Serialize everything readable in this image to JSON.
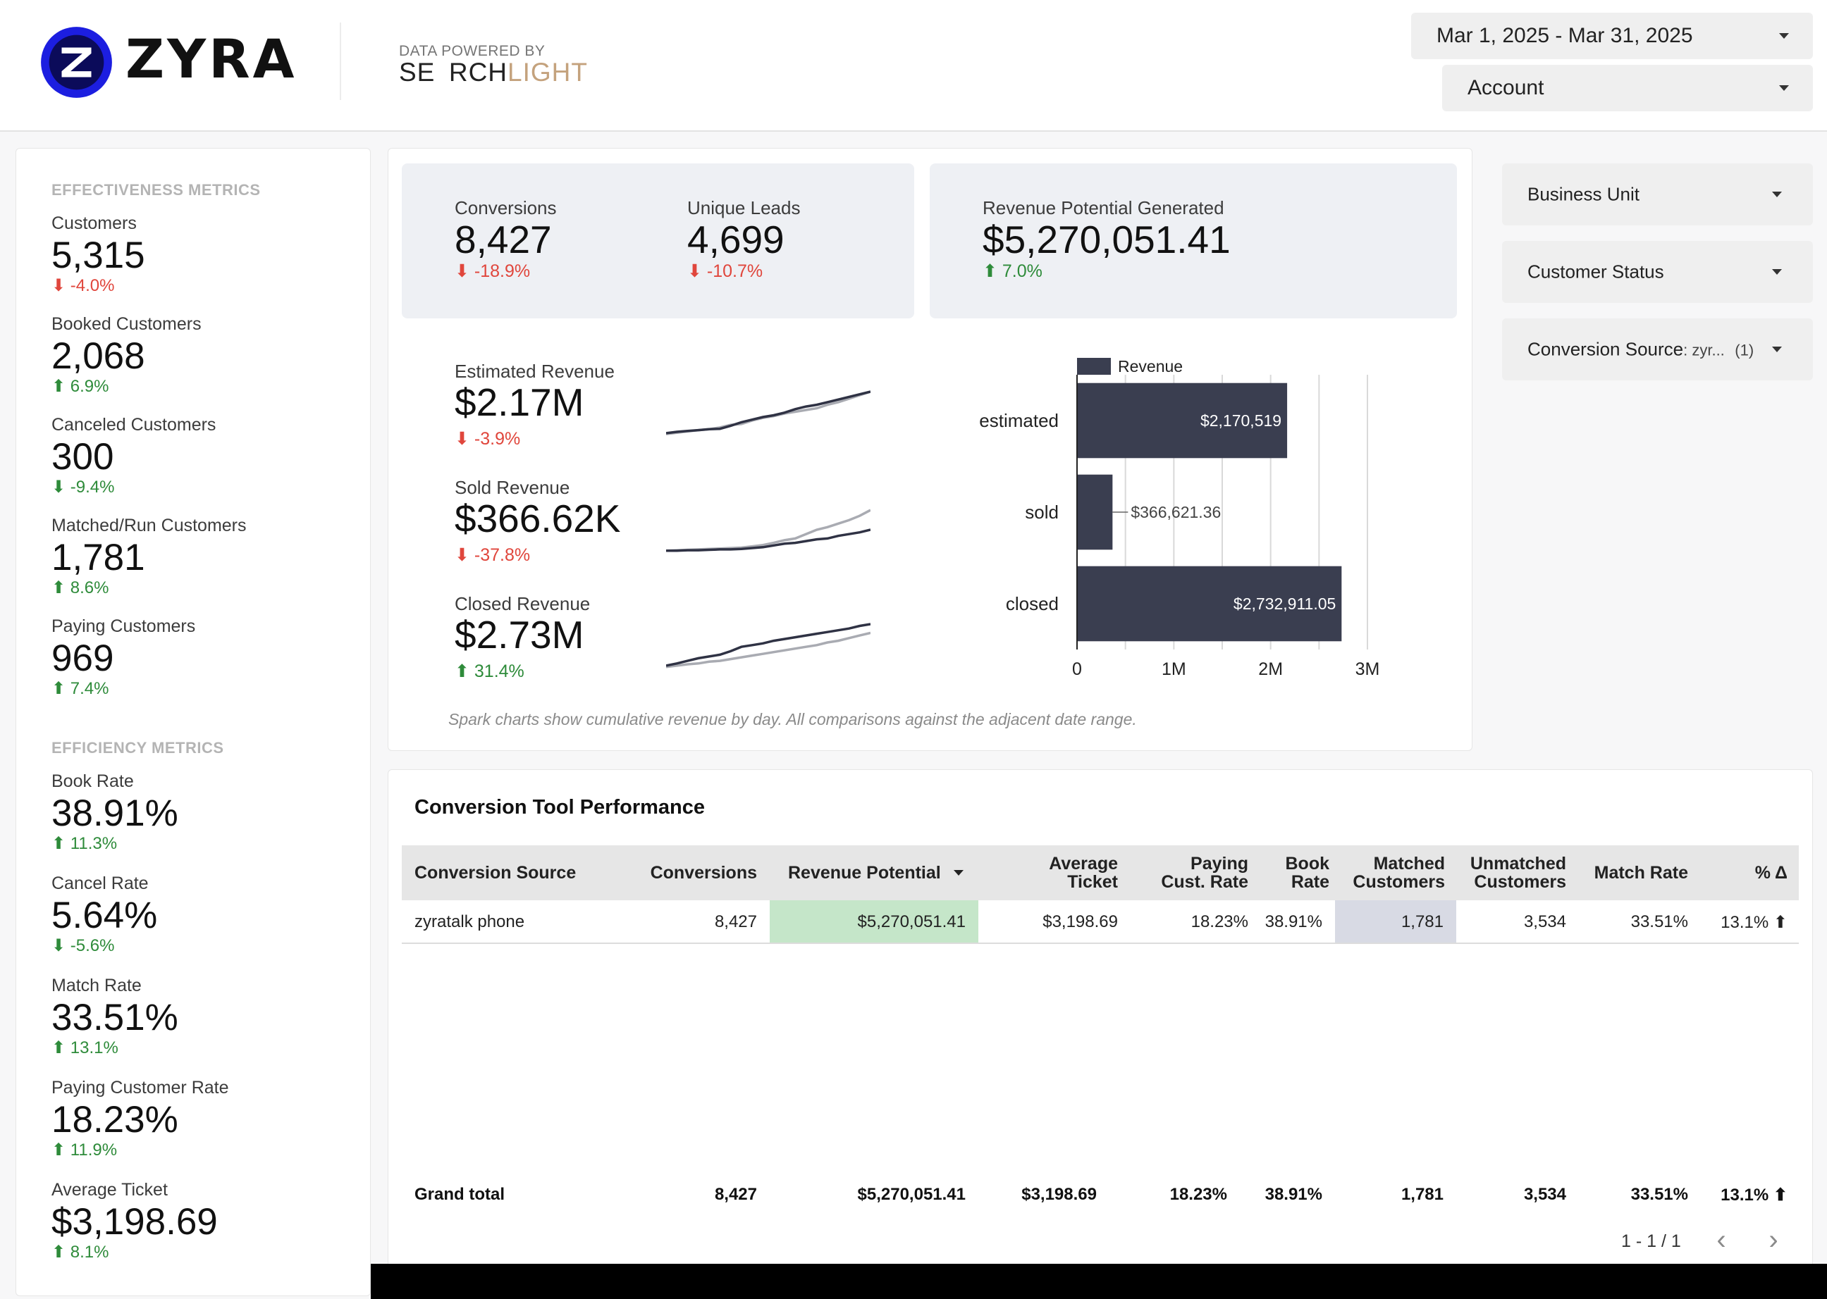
{
  "header": {
    "brand": "ZYRA",
    "powered_label": "DATA POWERED BY",
    "partner_dark": "SE RCH",
    "partner_light": "LIGHT",
    "date_range": "Mar 1, 2025 - Mar 31, 2025",
    "account_label": "Account"
  },
  "effectiveness": {
    "title": "EFFECTIVENESS METRICS",
    "items": [
      {
        "label": "Customers",
        "value": "5,315",
        "delta": "⬇ -4.0%"
      },
      {
        "label": "Booked Customers",
        "value": "2,068",
        "delta": "⬆ 6.9%"
      },
      {
        "label": "Canceled Customers",
        "value": "300",
        "delta": "⬇ -9.4%"
      },
      {
        "label": "Matched/Run Customers",
        "value": "1,781",
        "delta": "⬆ 8.6%"
      },
      {
        "label": "Paying Customers",
        "value": "969",
        "delta": "⬆ 7.4%"
      }
    ]
  },
  "efficiency": {
    "title": "EFFICIENCY METRICS",
    "items": [
      {
        "label": "Book Rate",
        "value": "38.91%",
        "delta": "⬆ 11.3%"
      },
      {
        "label": "Cancel Rate",
        "value": "5.64%",
        "delta": "⬇ -5.6%"
      },
      {
        "label": "Match Rate",
        "value": "33.51%",
        "delta": "⬆ 13.1%"
      },
      {
        "label": "Paying Customer Rate",
        "value": "18.23%",
        "delta": "⬆ 11.9%"
      },
      {
        "label": "Average Ticket",
        "value": "$3,198.69",
        "delta": "⬆ 8.1%"
      }
    ]
  },
  "kpis": {
    "conversions": {
      "label": "Conversions",
      "value": "8,427",
      "delta": "⬇ -18.9%"
    },
    "unique_leads": {
      "label": "Unique Leads",
      "value": "4,699",
      "delta": "⬇ -10.7%"
    },
    "revenue_potential": {
      "label": "Revenue Potential Generated",
      "value": "$5,270,051.41",
      "delta": "⬆ 7.0%"
    }
  },
  "sparks": [
    {
      "label": "Estimated Revenue",
      "value": "$2.17M",
      "delta": "⬇ -3.9%",
      "current": [
        0.05,
        0.08,
        0.1,
        0.12,
        0.14,
        0.15,
        0.22,
        0.3,
        0.36,
        0.42,
        0.46,
        0.52,
        0.6,
        0.66,
        0.7,
        0.76,
        0.82,
        0.88,
        0.94,
        1.0
      ],
      "prior": [
        0.03,
        0.06,
        0.09,
        0.12,
        0.14,
        0.18,
        0.24,
        0.26,
        0.34,
        0.4,
        0.44,
        0.5,
        0.54,
        0.58,
        0.62,
        0.7,
        0.76,
        0.84,
        0.92,
        1.0
      ]
    },
    {
      "label": "Sold Revenue",
      "value": "$366.62K",
      "delta": "⬇ -37.8%",
      "current": [
        0.02,
        0.02,
        0.03,
        0.03,
        0.04,
        0.05,
        0.05,
        0.06,
        0.08,
        0.1,
        0.14,
        0.18,
        0.2,
        0.24,
        0.28,
        0.3,
        0.36,
        0.4,
        0.44,
        0.5
      ],
      "prior": [
        0.02,
        0.03,
        0.04,
        0.05,
        0.06,
        0.07,
        0.08,
        0.09,
        0.12,
        0.15,
        0.2,
        0.26,
        0.3,
        0.4,
        0.5,
        0.56,
        0.64,
        0.72,
        0.82,
        0.95
      ]
    },
    {
      "label": "Closed Revenue",
      "value": "$2.73M",
      "delta": "⬆ 31.4%",
      "current": [
        0.05,
        0.1,
        0.16,
        0.22,
        0.26,
        0.3,
        0.38,
        0.48,
        0.52,
        0.56,
        0.62,
        0.66,
        0.7,
        0.74,
        0.78,
        0.82,
        0.86,
        0.9,
        0.96,
        1.0
      ],
      "prior": [
        0.02,
        0.05,
        0.08,
        0.1,
        0.14,
        0.16,
        0.2,
        0.24,
        0.28,
        0.32,
        0.36,
        0.4,
        0.44,
        0.48,
        0.52,
        0.58,
        0.62,
        0.68,
        0.74,
        0.8
      ]
    }
  ],
  "chart_data": {
    "type": "bar",
    "orientation": "horizontal",
    "categories": [
      "estimated",
      "sold",
      "closed"
    ],
    "series": [
      {
        "name": "Revenue",
        "values": [
          2170519,
          366621.36,
          2732911.05
        ]
      }
    ],
    "data_labels": [
      "$2,170,519",
      "$366,621.36",
      "$2,732,911.05"
    ],
    "xlim": [
      0,
      3000000
    ],
    "x_ticks": [
      0,
      1000000,
      2000000,
      3000000
    ],
    "x_tick_labels": [
      "0",
      "1M",
      "2M",
      "3M"
    ],
    "grid": true,
    "legend": "top-left",
    "colors": {
      "bar": "#3a3e50",
      "grid": "#d9d9d9",
      "axis": "#222222"
    }
  },
  "footnote": "Spark charts show cumulative revenue by day. All comparisons against the adjacent date range.",
  "filters": {
    "business_unit": "Business Unit",
    "customer_status": "Customer Status",
    "conversion_source": "Conversion Source",
    "conversion_source_value": ": zyr...",
    "conversion_source_count": "(1)"
  },
  "table": {
    "title": "Conversion Tool Performance",
    "columns": {
      "source": "Conversion Source",
      "conversions": "Conversions",
      "revenue": "Revenue Potential",
      "avg_ticket_1": "Average",
      "avg_ticket_2": "Ticket",
      "paying_1": "Paying",
      "paying_2": "Cust. Rate",
      "book_1": "Book",
      "book_2": "Rate",
      "matched_1": "Matched",
      "matched_2": "Customers",
      "unmatched_1": "Unmatched",
      "unmatched_2": "Customers",
      "match_rate": "Match Rate",
      "pct_delta": "% Δ"
    },
    "row": {
      "source": "zyratalk phone",
      "conversions": "8,427",
      "revenue": "$5,270,051.41",
      "avg_ticket": "$3,198.69",
      "paying": "18.23%",
      "book": "38.91%",
      "matched": "1,781",
      "unmatched": "3,534",
      "match_rate": "33.51%",
      "pct_delta": "13.1% ⬆"
    },
    "total": {
      "label": "Grand total",
      "conversions": "8,427",
      "revenue": "$5,270,051.41",
      "avg_ticket": "$3,198.69",
      "paying": "18.23%",
      "book": "38.91%",
      "matched": "1,781",
      "unmatched": "3,534",
      "match_rate": "33.51%",
      "pct_delta": "13.1% ⬆"
    },
    "pagination": "1 - 1 / 1"
  }
}
